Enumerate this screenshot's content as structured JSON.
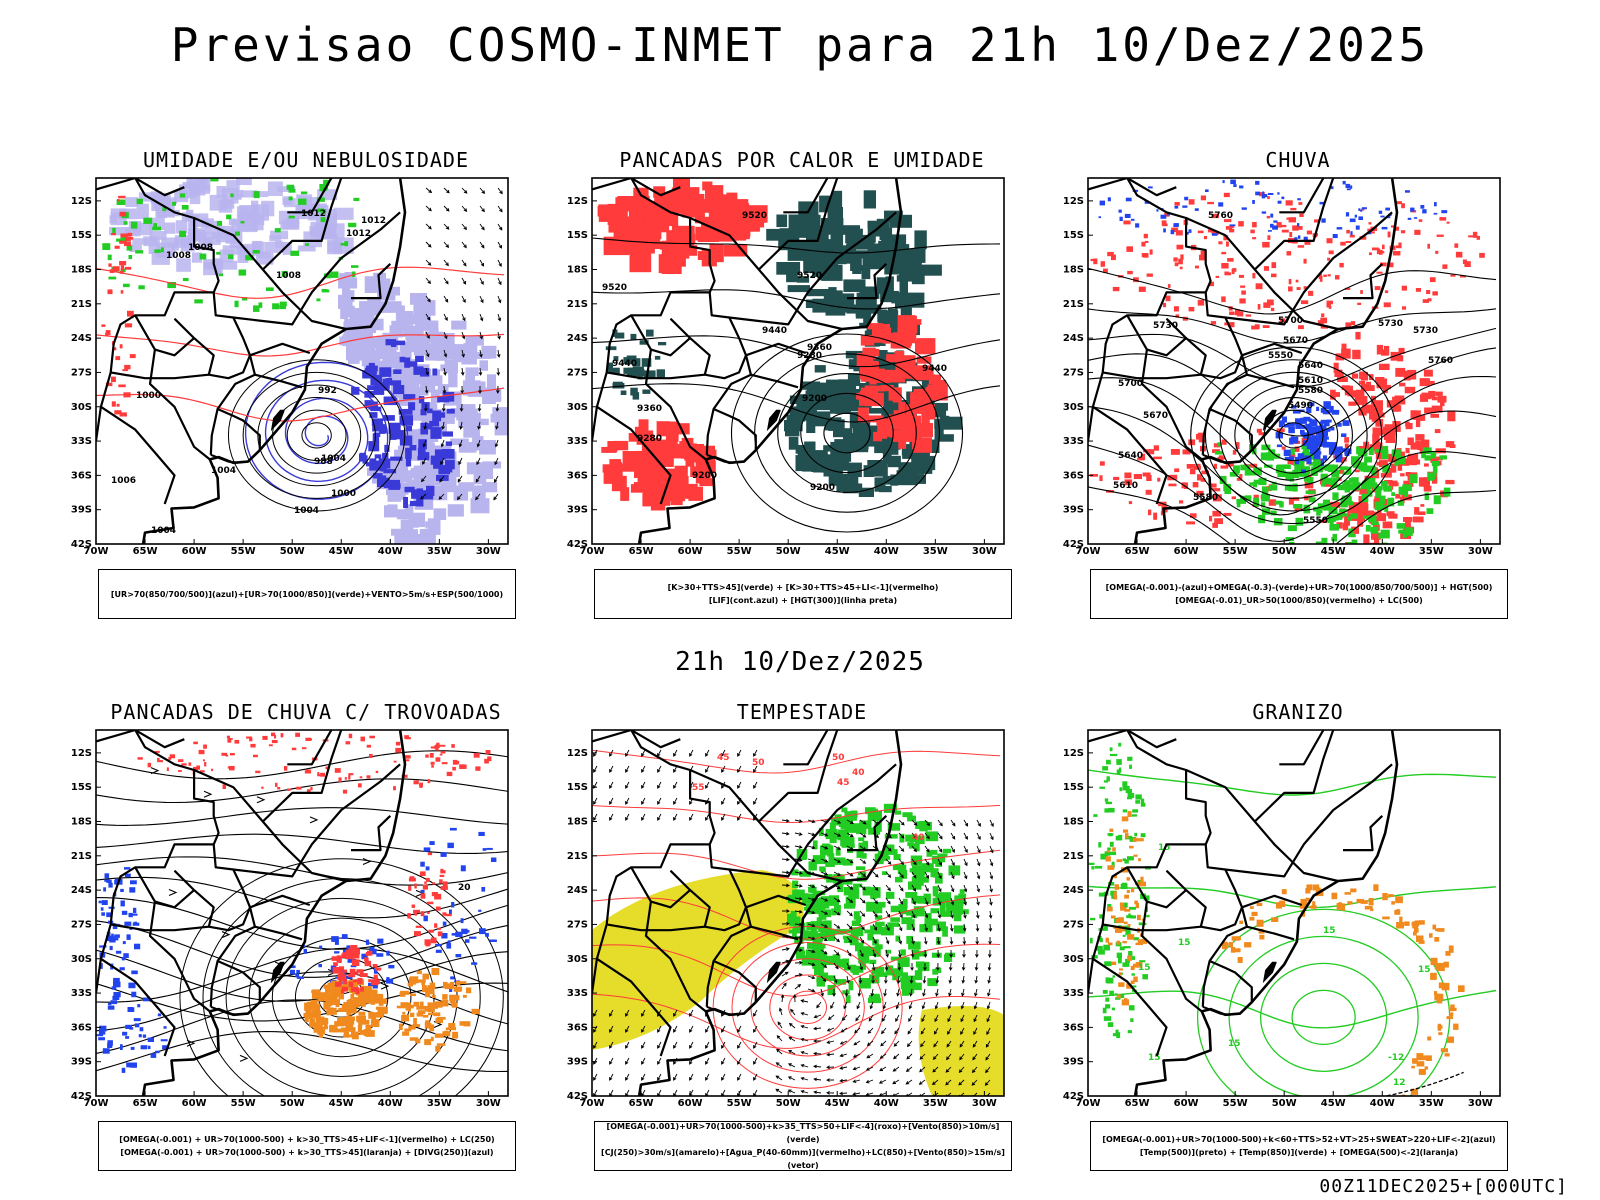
{
  "header": {
    "title": "Previsao COSMO-INMET  para 21h 10/Dez/2025",
    "mid_time": "21h 10/Dez/2025",
    "footer": "00Z11DEC2025+[000UTC]"
  },
  "axes": {
    "lat_labels": [
      "12S",
      "15S",
      "18S",
      "21S",
      "24S",
      "27S",
      "30S",
      "33S",
      "36S",
      "39S",
      "42S"
    ],
    "lon_labels": [
      "70W",
      "65W",
      "60W",
      "55W",
      "50W",
      "45W",
      "40W",
      "35W",
      "30W"
    ]
  },
  "colors": {
    "green": "#22cc22",
    "blue": "#2244ee",
    "red": "#ff3b3b",
    "dark_teal": "#224f4f",
    "orange": "#f08a1e",
    "yellow": "#e6dc2a",
    "lavender": "#b8b4ee",
    "navy": "#3a3ad8"
  },
  "panels": [
    {
      "id": "umidade",
      "title": "UMIDADE E/OU NEBULOSIDADE",
      "legend": [
        "[UR>70(850/700/500)](azul)+[UR>70(1000/850)](verde)+VENTO>5m/s+ESP(500/1000)"
      ],
      "contour_labels": [
        "1012",
        "1012",
        "1012",
        "1008",
        "1008",
        "1008",
        "1004",
        "1004",
        "1004",
        "1000",
        "1000",
        "992",
        "988",
        "1004",
        "1006"
      ]
    },
    {
      "id": "pancadas-calor",
      "title": "PANCADAS POR CALOR E UMIDADE",
      "legend": [
        "[K>30+TTS>45](verde) + [K>30+TTS>45+LI<-1](vermelho)",
        "[LIF](cont.azul) + [HGT(300)](linha preta)"
      ],
      "contour_labels": [
        "9520",
        "9520",
        "9520",
        "9440",
        "9440",
        "9440",
        "9360",
        "9360",
        "9280",
        "9280",
        "9200",
        "9200",
        "9200"
      ]
    },
    {
      "id": "chuva",
      "title": "CHUVA",
      "legend": [
        "[OMEGA(-0.001)-(azul)+OMEGA(-0.3)-(verde)+UR>70(1000/850/700/500)] + HGT(500)",
        "[OMEGA(-0.01)_UR>50(1000/850)(vermelho) + LC(500)"
      ],
      "contour_labels": [
        "5760",
        "5730",
        "5730",
        "5700",
        "5700",
        "5670",
        "5670",
        "5640",
        "5640",
        "5610",
        "5610",
        "5580",
        "5580",
        "5550",
        "5550",
        "5490",
        "5730",
        "5760"
      ]
    },
    {
      "id": "pancadas-trovoadas",
      "title": "PANCADAS DE CHUVA C/ TROVOADAS",
      "legend": [
        "[OMEGA(-0.001) + UR>70(1000-500) + k>30_TTS>45+LIF<-1](vermelho) + LC(250)",
        "[OMEGA(-0.001) + UR>70(1000-500) + k>30_TTS>45](laranja) + [DIVG(250)](azul)"
      ],
      "contour_labels": [
        "20"
      ]
    },
    {
      "id": "tempestade",
      "title": "TEMPESTADE",
      "legend": [
        "[OMEGA(-0.001)+UR>70(1000-500)+k>35_TTS>50+LIF<-4](roxo)+[Vento(850)>10m/s](verde)",
        "[CJ(250)>30m/s](amarelo)+[Agua_P(40-60mm)](vermelho)+LC(850)+[Vento(850)>15m/s](vetor)"
      ],
      "contour_labels": [
        "50",
        "45",
        "50",
        "55",
        "40",
        "40",
        "45"
      ]
    },
    {
      "id": "granizo",
      "title": "GRANIZO",
      "legend": [
        "[OMEGA(-0.001)+UR>70(1000-500)+k<60+TTS>52+VT>25+SWEAT>220+LIF<-2](azul)",
        "[Temp(500)](preto) + [Temp(850)](verde) + [OMEGA(500)<-2](laranja)"
      ],
      "contour_labels": [
        "12",
        "15",
        "15",
        "15",
        "15",
        "15",
        "15",
        "15",
        "-12"
      ]
    }
  ]
}
